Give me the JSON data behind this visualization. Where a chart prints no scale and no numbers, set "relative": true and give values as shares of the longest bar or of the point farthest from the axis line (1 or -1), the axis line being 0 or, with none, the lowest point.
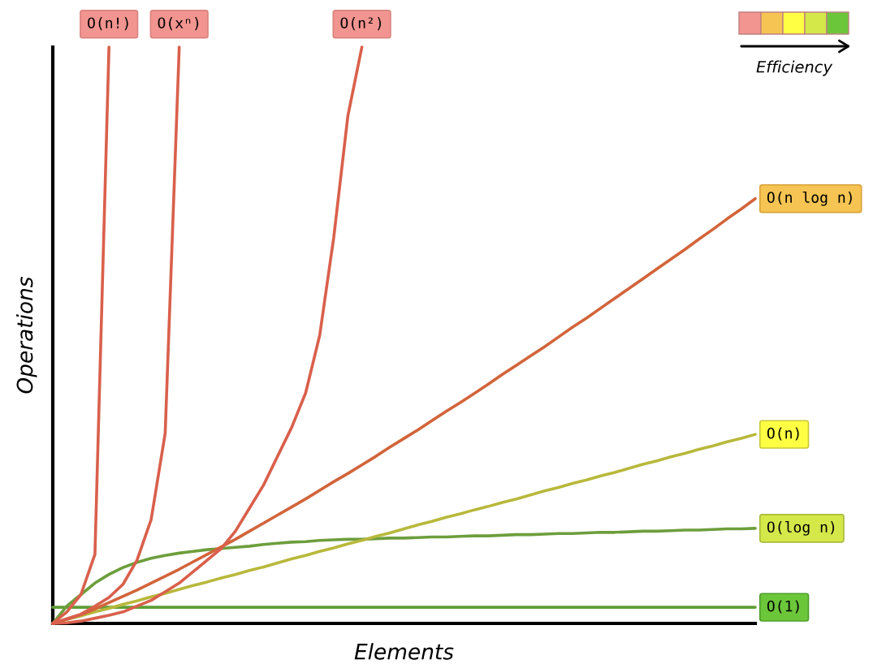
{
  "chart_data": {
    "type": "line",
    "relative": true,
    "xlabel": "Elements",
    "ylabel": "Operations",
    "annotations": [
      "Efficiency"
    ],
    "categories": [
      null,
      null,
      null,
      null,
      null,
      null,
      null,
      null,
      null,
      null,
      null,
      null,
      null,
      null,
      null,
      null,
      null,
      null,
      null,
      null,
      null,
      null,
      null,
      null,
      null,
      null,
      null,
      null,
      null,
      null,
      null,
      null,
      null,
      null,
      null,
      null,
      null,
      null,
      null,
      null,
      null,
      null,
      null,
      null,
      null,
      null,
      null,
      null,
      null,
      null,
      null
    ],
    "series": [
      {
        "name": "O(n!)",
        "color": "#d9604c",
        "values": [
          0,
          0.02,
          0.05,
          0.12,
          1.0,
          null,
          null,
          null,
          null,
          null,
          null,
          null,
          null,
          null,
          null,
          null,
          null,
          null,
          null,
          null,
          null,
          null,
          null,
          null,
          null,
          null,
          null,
          null,
          null,
          null,
          null,
          null,
          null,
          null,
          null,
          null,
          null,
          null,
          null,
          null,
          null,
          null,
          null,
          null,
          null,
          null,
          null,
          null,
          null,
          null,
          null
        ]
      },
      {
        "name": "O(xⁿ)",
        "color": "#d9604c",
        "values": [
          0,
          0.008,
          0.016,
          0.03,
          0.045,
          0.068,
          0.11,
          0.18,
          0.33,
          1.0,
          null,
          null,
          null,
          null,
          null,
          null,
          null,
          null,
          null,
          null,
          null,
          null,
          null,
          null,
          null,
          null,
          null,
          null,
          null,
          null,
          null,
          null,
          null,
          null,
          null,
          null,
          null,
          null,
          null,
          null,
          null,
          null,
          null,
          null,
          null,
          null,
          null,
          null,
          null,
          null,
          null
        ]
      },
      {
        "name": "O(n²)",
        "color": "#d9604c",
        "values": [
          0,
          0.001,
          0.004,
          0.009,
          0.014,
          0.02,
          0.03,
          0.04,
          0.055,
          0.07,
          0.09,
          0.11,
          0.13,
          0.16,
          0.2,
          0.24,
          0.29,
          0.34,
          0.4,
          0.5,
          0.67,
          0.88,
          1.0,
          null,
          null,
          null,
          null,
          null,
          null,
          null,
          null,
          null,
          null,
          null,
          null,
          null,
          null,
          null,
          null,
          null,
          null,
          null,
          null,
          null,
          null,
          null,
          null,
          null,
          null,
          null,
          null
        ]
      },
      {
        "name": "O(n log n)",
        "color": "#d2643a",
        "values": [
          0,
          0.007,
          0.015,
          0.025,
          0.036,
          0.047,
          0.058,
          0.07,
          0.082,
          0.094,
          0.107,
          0.12,
          0.133,
          0.146,
          0.16,
          0.174,
          0.188,
          0.202,
          0.216,
          0.231,
          0.246,
          0.26,
          0.275,
          0.29,
          0.306,
          0.321,
          0.336,
          0.352,
          0.368,
          0.383,
          0.399,
          0.415,
          0.432,
          0.448,
          0.464,
          0.48,
          0.497,
          0.514,
          0.53,
          0.547,
          0.564,
          0.581,
          0.598,
          0.615,
          0.632,
          0.649,
          0.667,
          0.684,
          0.702,
          0.719,
          0.737
        ]
      },
      {
        "name": "O(n)",
        "color": "#b8b83c",
        "values": [
          0,
          0.007,
          0.013,
          0.02,
          0.026,
          0.033,
          0.039,
          0.046,
          0.052,
          0.059,
          0.066,
          0.072,
          0.079,
          0.085,
          0.092,
          0.098,
          0.105,
          0.112,
          0.118,
          0.125,
          0.131,
          0.138,
          0.144,
          0.151,
          0.157,
          0.164,
          0.171,
          0.177,
          0.184,
          0.19,
          0.197,
          0.203,
          0.21,
          0.216,
          0.223,
          0.23,
          0.236,
          0.243,
          0.249,
          0.256,
          0.262,
          0.269,
          0.276,
          0.282,
          0.289,
          0.295,
          0.302,
          0.308,
          0.315,
          0.321,
          0.328
        ]
      },
      {
        "name": "O(log n)",
        "color": "#6d9e3c",
        "values": [
          0,
          0.03,
          0.05,
          0.07,
          0.085,
          0.097,
          0.106,
          0.113,
          0.118,
          0.122,
          0.125,
          0.128,
          0.13,
          0.132,
          0.134,
          0.137,
          0.139,
          0.141,
          0.142,
          0.144,
          0.145,
          0.146,
          0.146,
          0.147,
          0.148,
          0.148,
          0.149,
          0.15,
          0.15,
          0.151,
          0.152,
          0.152,
          0.153,
          0.154,
          0.154,
          0.155,
          0.156,
          0.156,
          0.157,
          0.158,
          0.158,
          0.159,
          0.16,
          0.16,
          0.161,
          0.162,
          0.162,
          0.163,
          0.164,
          0.164,
          0.165
        ]
      },
      {
        "name": "O(1)",
        "color": "#5e9e36",
        "values": [
          0.028,
          0.028,
          0.028,
          0.028,
          0.028,
          0.028,
          0.028,
          0.028,
          0.028,
          0.028,
          0.028,
          0.028,
          0.028,
          0.028,
          0.028,
          0.028,
          0.028,
          0.028,
          0.028,
          0.028,
          0.028,
          0.028,
          0.028,
          0.028,
          0.028,
          0.028,
          0.028,
          0.028,
          0.028,
          0.028,
          0.028,
          0.028,
          0.028,
          0.028,
          0.028,
          0.028,
          0.028,
          0.028,
          0.028,
          0.028,
          0.028,
          0.028,
          0.028,
          0.028,
          0.028,
          0.028,
          0.028,
          0.028,
          0.028,
          0.028,
          0.028
        ]
      }
    ]
  }
}
